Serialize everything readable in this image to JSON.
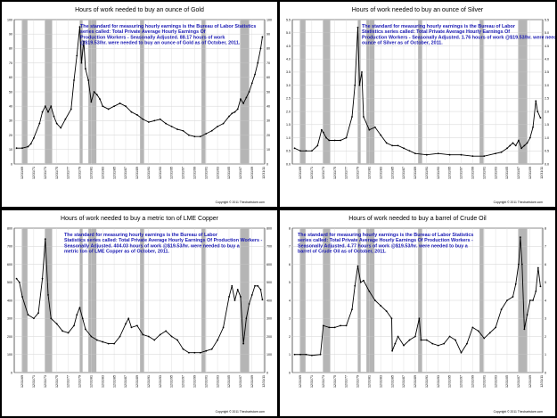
{
  "copyright": "Copyright © 2011 Thechartstore.com",
  "x_ticks_common": [
    "12/31/69",
    "12/31/71",
    "12/31/73",
    "12/31/75",
    "12/31/77",
    "12/31/79",
    "12/31/81",
    "12/31/83",
    "12/31/85",
    "12/31/87",
    "12/31/89",
    "12/31/91",
    "12/31/93",
    "12/31/95",
    "12/31/97",
    "12/31/99",
    "12/31/01",
    "12/31/03",
    "12/31/05",
    "12/31/07",
    "12/31/09",
    "12/31/11"
  ],
  "chart_data": [
    {
      "id": "gold",
      "type": "line",
      "title": "Hours of work needed to buy an ounce of Gold",
      "annotation": [
        "The standard for measuring hourly earnings is the Bureau of Labor Statistics",
        "series called:  Total Private Average Hourly Earnings Of",
        "Production Workers - Seasonally Adjusted.  88.17 hours of work",
        "@$19.53/hr. were needed to buy an ounce of Gold as of October, 2011."
      ],
      "ylim": [
        0,
        100
      ],
      "yticks": [
        0,
        10,
        20,
        30,
        40,
        50,
        60,
        70,
        80,
        90,
        100
      ],
      "x_ticks": [
        "12/31/69",
        "12/31/71",
        "12/31/73",
        "12/31/75",
        "12/31/77",
        "12/31/79",
        "12/31/81",
        "12/31/83",
        "12/31/85",
        "12/31/87",
        "12/31/89",
        "12/31/91",
        "12/31/93",
        "12/31/95",
        "12/31/97",
        "12/31/99",
        "12/31/01",
        "12/31/03",
        "12/31/05",
        "12/31/07",
        "12/31/09",
        "12/31/11"
      ],
      "recessions": [
        [
          1969.9,
          1970.9
        ],
        [
          1973.9,
          1975.2
        ],
        [
          1980.0,
          1980.5
        ],
        [
          1981.5,
          1982.9
        ],
        [
          1990.5,
          1991.2
        ],
        [
          2001.2,
          2001.9
        ],
        [
          2007.9,
          2009.5
        ]
      ],
      "series": [
        {
          "x": [
            1969.0,
            1970.0,
            1971.0,
            1971.5,
            1972.0,
            1973.0,
            1973.5,
            1974.0,
            1974.5,
            1975.0,
            1975.5,
            1976.0,
            1976.7,
            1977.5,
            1978.5,
            1979.0,
            1979.5,
            1980.0,
            1980.3,
            1980.7,
            1981.0,
            1981.5,
            1982.0,
            1982.5,
            1983.0,
            1983.5,
            1984.0,
            1985.0,
            1986.0,
            1987.0,
            1988.0,
            1989.0,
            1990.0,
            1991.0,
            1992.0,
            1993.0,
            1994.0,
            1995.0,
            1996.0,
            1997.0,
            1998.0,
            1999.0,
            2000.0,
            2001.0,
            2002.0,
            2003.0,
            2004.0,
            2005.0,
            2006.0,
            2006.5,
            2007.0,
            2007.5,
            2008.0,
            2008.5,
            2009.0,
            2009.5,
            2010.0,
            2010.5,
            2011.0,
            2011.5,
            2011.8
          ],
          "values": [
            11,
            11,
            12,
            14,
            18,
            28,
            36,
            40,
            36,
            40,
            33,
            28,
            25,
            31,
            38,
            58,
            75,
            95,
            70,
            85,
            66,
            58,
            43,
            50,
            48,
            45,
            40,
            38,
            40,
            42,
            40,
            36,
            34,
            31,
            29,
            30,
            31,
            28,
            26,
            24,
            23,
            20,
            19,
            19,
            21,
            23,
            26,
            28,
            33,
            35,
            36,
            38,
            45,
            42,
            46,
            50,
            56,
            62,
            70,
            80,
            88
          ]
        }
      ]
    },
    {
      "id": "silver",
      "type": "line",
      "title": "Hours of work needed to buy an ounce of Silver",
      "annotation": [
        "The standard for measuring hourly earnings is the Bureau of Labor",
        "Statistics series called:  Total Private Average Hourly Earnings Of",
        "Production Workers - Seasonally Adjusted.  1.76 hours of work @$19.53/hr. were needed to buy an",
        "ounce of Silver as of October, 2011."
      ],
      "ylim": [
        0,
        5.5
      ],
      "yticks": [
        0,
        0.5,
        1.0,
        1.5,
        2.0,
        2.5,
        3.0,
        3.5,
        4.0,
        4.5,
        5.0,
        5.5
      ],
      "x_ticks": [
        "12/31/69",
        "12/31/71",
        "12/31/73",
        "12/31/75",
        "12/31/77",
        "12/31/79",
        "12/31/81",
        "12/31/83",
        "12/31/85",
        "12/31/87",
        "12/31/89",
        "12/31/91",
        "12/31/93",
        "12/31/95",
        "12/31/97",
        "12/31/99",
        "12/31/01",
        "12/31/03",
        "12/31/05",
        "12/31/07",
        "12/31/09",
        "12/31/11"
      ],
      "recessions": [
        [
          1969.9,
          1970.9
        ],
        [
          1973.9,
          1975.2
        ],
        [
          1980.0,
          1980.5
        ],
        [
          1981.5,
          1982.9
        ],
        [
          1990.5,
          1991.2
        ],
        [
          2001.2,
          2001.9
        ],
        [
          2007.9,
          2009.5
        ]
      ],
      "series": [
        {
          "x": [
            1969.0,
            1970.0,
            1971.0,
            1972.0,
            1973.0,
            1973.7,
            1974.0,
            1974.5,
            1975.0,
            1976.0,
            1977.0,
            1978.0,
            1979.0,
            1979.5,
            1980.0,
            1980.3,
            1980.7,
            1981.0,
            1982.0,
            1983.0,
            1984.0,
            1985.0,
            1986.0,
            1987.0,
            1988.0,
            1989.0,
            1990.0,
            1992.0,
            1994.0,
            1996.0,
            1998.0,
            2000.0,
            2002.0,
            2004.0,
            2005.0,
            2006.0,
            2006.5,
            2007.0,
            2007.5,
            2008.0,
            2008.5,
            2009.0,
            2009.5,
            2010.0,
            2010.5,
            2011.0,
            2011.3,
            2011.8
          ],
          "values": [
            0.6,
            0.5,
            0.5,
            0.5,
            0.7,
            1.3,
            1.2,
            1.0,
            0.9,
            0.9,
            0.9,
            1.0,
            1.8,
            3.0,
            5.2,
            3.0,
            3.5,
            1.8,
            1.3,
            1.4,
            1.1,
            0.8,
            0.7,
            0.7,
            0.6,
            0.5,
            0.4,
            0.35,
            0.4,
            0.35,
            0.35,
            0.3,
            0.3,
            0.4,
            0.45,
            0.6,
            0.7,
            0.8,
            0.7,
            0.9,
            0.6,
            0.7,
            0.8,
            1.0,
            1.4,
            2.4,
            2.0,
            1.76
          ]
        }
      ]
    },
    {
      "id": "copper",
      "type": "line",
      "title": "Hours of work needed to buy a metric ton of LME Copper",
      "annotation": [
        "The standard for measuring hourly earnings is the Bureau of Labor",
        "Statistics series called:  Total Private Average Hourly Earnings Of Production Workers -",
        "Seasonally Adjusted.  404.03 hours of work @$19.53/hr. were needed to buy a",
        "metric ton of LME Copper as of October, 2011."
      ],
      "ylim": [
        0,
        800
      ],
      "yticks": [
        0,
        100,
        200,
        300,
        400,
        500,
        600,
        700,
        800
      ],
      "x_ticks": [
        "12/31/69",
        "12/31/71",
        "12/31/73",
        "12/31/75",
        "12/31/77",
        "12/31/79",
        "12/31/81",
        "12/31/83",
        "12/31/85",
        "12/31/87",
        "12/31/89",
        "12/31/91",
        "12/31/93",
        "12/31/95",
        "12/31/97",
        "12/31/99",
        "12/31/01",
        "12/31/03",
        "12/31/05",
        "12/31/07",
        "12/31/09",
        "12/31/11"
      ],
      "recessions": [
        [
          1969.9,
          1970.9
        ],
        [
          1973.9,
          1975.2
        ],
        [
          1980.0,
          1980.5
        ],
        [
          1981.5,
          1982.9
        ],
        [
          1990.5,
          1991.2
        ],
        [
          2001.2,
          2001.9
        ],
        [
          2007.9,
          2009.5
        ]
      ],
      "series": [
        {
          "x": [
            1969.0,
            1969.5,
            1970.0,
            1971.0,
            1972.0,
            1972.8,
            1973.5,
            1974.0,
            1974.5,
            1975.0,
            1976.0,
            1977.0,
            1978.0,
            1979.0,
            1979.5,
            1980.0,
            1980.5,
            1981.0,
            1982.0,
            1983.0,
            1984.0,
            1985.0,
            1986.0,
            1987.0,
            1988.0,
            1988.5,
            1989.0,
            1990.0,
            1991.0,
            1992.0,
            1993.0,
            1994.0,
            1995.0,
            1996.0,
            1997.0,
            1998.0,
            1999.0,
            2000.0,
            2001.0,
            2002.0,
            2003.0,
            2004.0,
            2005.0,
            2006.0,
            2006.5,
            2007.0,
            2007.5,
            2008.0,
            2008.5,
            2009.0,
            2009.5,
            2010.0,
            2010.5,
            2011.0,
            2011.5,
            2011.8
          ],
          "values": [
            520,
            500,
            420,
            320,
            300,
            330,
            520,
            740,
            430,
            300,
            270,
            230,
            220,
            260,
            320,
            360,
            300,
            240,
            200,
            180,
            170,
            160,
            160,
            200,
            270,
            300,
            250,
            260,
            210,
            200,
            180,
            210,
            230,
            200,
            180,
            130,
            110,
            110,
            110,
            120,
            130,
            180,
            250,
            420,
            480,
            400,
            460,
            420,
            160,
            300,
            380,
            430,
            480,
            480,
            460,
            404
          ]
        }
      ]
    },
    {
      "id": "oil",
      "type": "line",
      "title": "Hours of work needed to buy a barrel of Crude Oil",
      "annotation": [
        "The standard for measuring hourly earnings is the Bureau of Labor Statistics",
        "series called:  Total Private Average Hourly Earnings Of Production Workers -",
        "Seasonally Adjusted.  4.77 hours of work @$19.53/hr. were needed to buy a",
        "barrel of Crude Oil as of October, 2011."
      ],
      "ylim": [
        0,
        8
      ],
      "yticks": [
        0,
        1,
        2,
        3,
        4,
        5,
        6,
        7,
        8
      ],
      "x_ticks": [
        "12/31/69",
        "12/31/71",
        "12/31/73",
        "12/31/75",
        "12/31/77",
        "12/31/79",
        "12/31/81",
        "12/31/83",
        "12/31/85",
        "12/31/87",
        "12/31/89",
        "12/31/91",
        "12/31/93",
        "12/31/95",
        "12/31/97",
        "12/31/99",
        "12/31/01",
        "12/31/03",
        "12/31/05",
        "12/31/07",
        "12/31/09",
        "12/31/11"
      ],
      "recessions": [
        [
          1969.9,
          1970.9
        ],
        [
          1973.9,
          1975.2
        ],
        [
          1980.0,
          1980.5
        ],
        [
          1981.5,
          1982.9
        ],
        [
          1990.5,
          1991.2
        ],
        [
          2001.2,
          2001.9
        ],
        [
          2007.9,
          2009.5
        ]
      ],
      "series": [
        {
          "x": [
            1969.0,
            1970.0,
            1971.0,
            1972.0,
            1973.5,
            1974.0,
            1975.0,
            1976.0,
            1977.0,
            1978.0,
            1979.0,
            1979.5,
            1980.0,
            1980.5,
            1981.0,
            1982.0,
            1983.0,
            1984.0,
            1985.0,
            1985.9,
            1986.0,
            1986.5,
            1987.0,
            1988.0,
            1989.0,
            1990.0,
            1990.7,
            1991.0,
            1992.0,
            1993.0,
            1994.0,
            1995.0,
            1996.0,
            1997.0,
            1998.0,
            1999.0,
            2000.0,
            2001.0,
            2002.0,
            2003.0,
            2004.0,
            2005.0,
            2006.0,
            2007.0,
            2007.5,
            2008.0,
            2008.3,
            2008.6,
            2009.0,
            2009.5,
            2010.0,
            2010.5,
            2011.0,
            2011.4,
            2011.8
          ],
          "values": [
            1.0,
            1.0,
            1.0,
            0.95,
            1.0,
            2.6,
            2.5,
            2.5,
            2.6,
            2.6,
            3.5,
            4.8,
            5.9,
            5.0,
            5.1,
            4.5,
            4.0,
            3.7,
            3.4,
            3.0,
            1.2,
            1.6,
            2.0,
            1.5,
            1.8,
            2.0,
            3.0,
            1.8,
            1.8,
            1.6,
            1.5,
            1.6,
            2.0,
            1.8,
            1.1,
            1.6,
            2.5,
            2.3,
            1.9,
            2.2,
            2.5,
            3.5,
            4.0,
            4.2,
            4.9,
            6.0,
            7.5,
            6.0,
            2.4,
            3.2,
            4.0,
            4.0,
            4.5,
            5.8,
            4.77
          ]
        }
      ]
    }
  ]
}
